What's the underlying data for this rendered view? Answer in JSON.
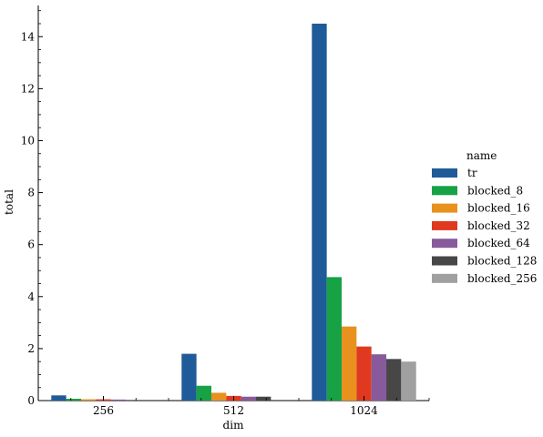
{
  "chart_data": {
    "type": "bar",
    "xlabel": "dim",
    "ylabel": "total",
    "categories": [
      "256",
      "512",
      "1024"
    ],
    "ylim": [
      0,
      15.2
    ],
    "yticks": [
      0,
      2,
      4,
      6,
      8,
      10,
      12,
      14
    ],
    "legend": {
      "title": "name",
      "position": "right"
    },
    "series": [
      {
        "name": "tr",
        "color": "#1f5b99",
        "values": [
          0.2,
          1.8,
          14.5
        ]
      },
      {
        "name": "blocked_8",
        "color": "#17a246",
        "values": [
          0.07,
          0.57,
          4.75
        ]
      },
      {
        "name": "blocked_16",
        "color": "#e8911f",
        "values": [
          0.05,
          0.3,
          2.85
        ]
      },
      {
        "name": "blocked_32",
        "color": "#e0391f",
        "values": [
          0.05,
          0.18,
          2.08
        ]
      },
      {
        "name": "blocked_64",
        "color": "#885a9c",
        "values": [
          0.04,
          0.15,
          1.78
        ]
      },
      {
        "name": "blocked_128",
        "color": "#474747",
        "values": [
          0.0,
          0.15,
          1.6
        ]
      },
      {
        "name": "blocked_256",
        "color": "#a0a0a0",
        "values": [
          0.0,
          0.0,
          1.5
        ]
      }
    ]
  }
}
